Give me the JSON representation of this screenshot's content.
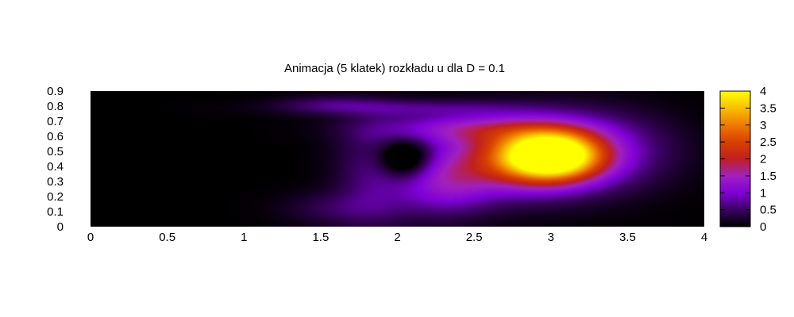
{
  "chart_data": {
    "type": "heatmap",
    "title": "Animacja (5 klatek) rozkładu u dla D = 0.1",
    "xlabel": "",
    "ylabel": "",
    "xlim": [
      0,
      4
    ],
    "ylim": [
      0,
      0.9
    ],
    "x_ticks": [
      0,
      0.5,
      1,
      1.5,
      2,
      2.5,
      3,
      3.5,
      4
    ],
    "y_ticks": [
      0,
      0.1,
      0.2,
      0.3,
      0.4,
      0.5,
      0.6,
      0.7,
      0.8,
      0.9
    ],
    "x_tick_labels": [
      "0",
      "0.5",
      "1",
      "1.5",
      "2",
      "2.5",
      "3",
      "3.5",
      "4"
    ],
    "y_tick_labels": [
      "0",
      "0.1",
      "0.2",
      "0.3",
      "0.4",
      "0.5",
      "0.6",
      "0.7",
      "0.8",
      "0.9"
    ],
    "colorbar": {
      "range": [
        0,
        4
      ],
      "ticks": [
        0,
        0.5,
        1,
        1.5,
        2,
        2.5,
        3,
        3.5,
        4
      ],
      "tick_labels": [
        "0",
        "0.5",
        "1",
        "1.5",
        "2",
        "2.5",
        "3",
        "3.5",
        "4"
      ],
      "palette": [
        {
          "v": 0.0,
          "color": "#000000"
        },
        {
          "v": 0.5,
          "color": "#3a0060"
        },
        {
          "v": 1.0,
          "color": "#8000d8"
        },
        {
          "v": 1.5,
          "color": "#a020c0"
        },
        {
          "v": 2.0,
          "color": "#c02020"
        },
        {
          "v": 2.5,
          "color": "#d84000"
        },
        {
          "v": 3.0,
          "color": "#ee7a00"
        },
        {
          "v": 3.5,
          "color": "#f8c000"
        },
        {
          "v": 4.0,
          "color": "#ffff00"
        }
      ]
    },
    "approximate_field": {
      "description_units": "data units (x, y) with peak value u",
      "blobs": [
        {
          "x": 3.0,
          "y": 0.47,
          "sx": 0.22,
          "sy": 0.11,
          "u": 4.0
        },
        {
          "x": 2.75,
          "y": 0.45,
          "sx": 0.35,
          "sy": 0.17,
          "u": 1.7
        },
        {
          "x": 3.3,
          "y": 0.5,
          "sx": 0.35,
          "sy": 0.18,
          "u": 0.9
        },
        {
          "x": 2.45,
          "y": 0.65,
          "sx": 0.45,
          "sy": 0.07,
          "u": 1.0
        },
        {
          "x": 2.05,
          "y": 0.79,
          "sx": 0.55,
          "sy": 0.04,
          "u": 0.55
        },
        {
          "x": 1.55,
          "y": 0.82,
          "sx": 0.22,
          "sy": 0.04,
          "u": 0.35
        },
        {
          "x": 2.3,
          "y": 0.28,
          "sx": 0.22,
          "sy": 0.15,
          "u": 1.0
        },
        {
          "x": 1.85,
          "y": 0.35,
          "sx": 0.18,
          "sy": 0.25,
          "u": 0.6
        },
        {
          "x": 1.6,
          "y": 0.12,
          "sx": 0.25,
          "sy": 0.08,
          "u": 0.4
        },
        {
          "x": 2.05,
          "y": 0.45,
          "sx": 0.12,
          "sy": 0.09,
          "u": -1.2
        }
      ]
    }
  }
}
